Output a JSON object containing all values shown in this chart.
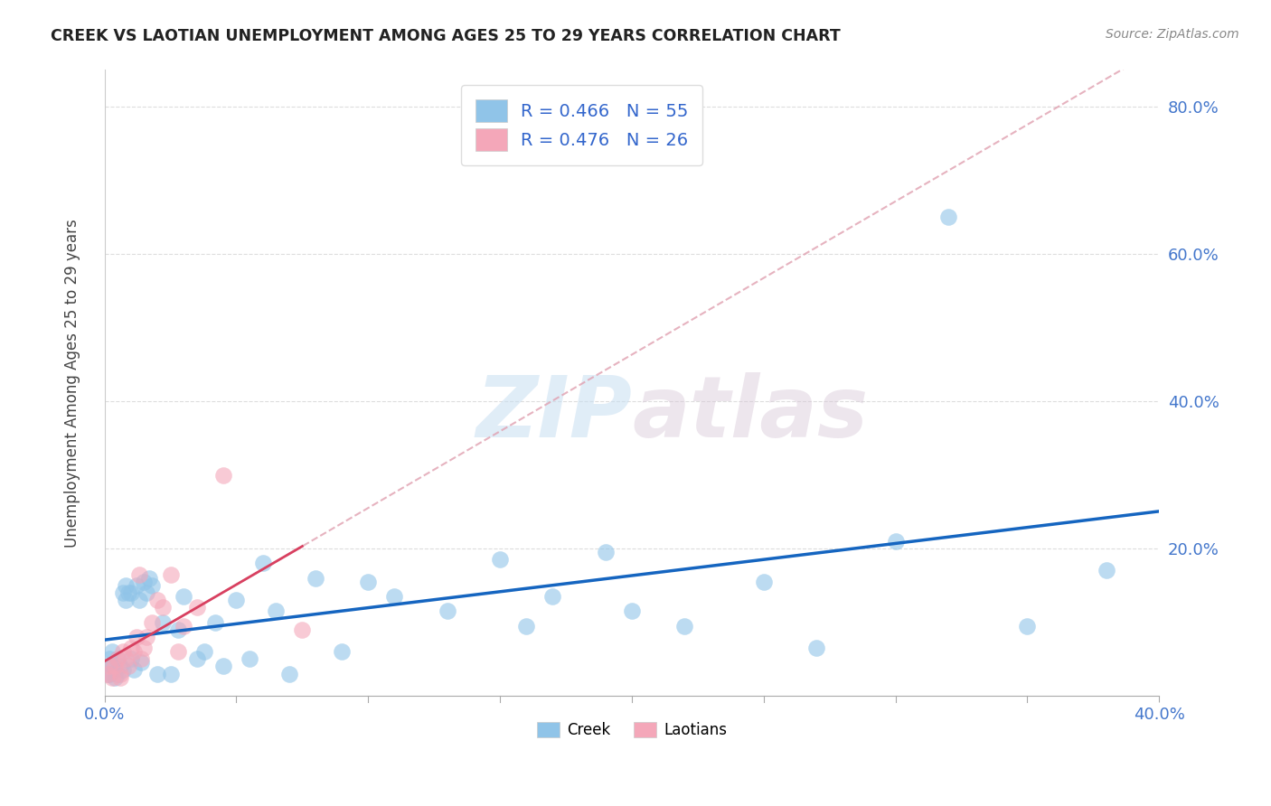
{
  "title": "CREEK VS LAOTIAN UNEMPLOYMENT AMONG AGES 25 TO 29 YEARS CORRELATION CHART",
  "source": "Source: ZipAtlas.com",
  "ylabel": "Unemployment Among Ages 25 to 29 years",
  "xlim": [
    0.0,
    0.4
  ],
  "ylim": [
    0.0,
    0.85
  ],
  "xticks": [
    0.0,
    0.4
  ],
  "xtick_labels": [
    "0.0%",
    "40.0%"
  ],
  "yticks": [
    0.2,
    0.4,
    0.6,
    0.8
  ],
  "ytick_labels": [
    "20.0%",
    "40.0%",
    "60.0%",
    "80.0%"
  ],
  "creek_color": "#90c4e8",
  "laotian_color": "#f4a7b9",
  "creek_line_color": "#1565c0",
  "laotian_line_color": "#d84060",
  "laotian_dash_color": "#e0a0b0",
  "creek_R": 0.466,
  "creek_N": 55,
  "laotian_R": 0.476,
  "laotian_N": 26,
  "creek_x": [
    0.001,
    0.002,
    0.002,
    0.003,
    0.003,
    0.004,
    0.005,
    0.005,
    0.006,
    0.007,
    0.007,
    0.008,
    0.008,
    0.009,
    0.01,
    0.01,
    0.011,
    0.012,
    0.013,
    0.014,
    0.015,
    0.016,
    0.017,
    0.018,
    0.02,
    0.022,
    0.025,
    0.028,
    0.03,
    0.035,
    0.038,
    0.042,
    0.045,
    0.05,
    0.055,
    0.06,
    0.065,
    0.07,
    0.08,
    0.09,
    0.1,
    0.11,
    0.13,
    0.15,
    0.16,
    0.17,
    0.19,
    0.2,
    0.22,
    0.25,
    0.27,
    0.3,
    0.32,
    0.35,
    0.38
  ],
  "creek_y": [
    0.03,
    0.05,
    0.03,
    0.04,
    0.06,
    0.025,
    0.03,
    0.05,
    0.04,
    0.035,
    0.14,
    0.13,
    0.15,
    0.14,
    0.14,
    0.05,
    0.035,
    0.15,
    0.13,
    0.045,
    0.155,
    0.14,
    0.16,
    0.15,
    0.03,
    0.1,
    0.03,
    0.09,
    0.135,
    0.05,
    0.06,
    0.1,
    0.04,
    0.13,
    0.05,
    0.18,
    0.115,
    0.03,
    0.16,
    0.06,
    0.155,
    0.135,
    0.115,
    0.185,
    0.095,
    0.135,
    0.195,
    0.115,
    0.095,
    0.155,
    0.065,
    0.21,
    0.65,
    0.095,
    0.17
  ],
  "laotian_x": [
    0.001,
    0.002,
    0.003,
    0.004,
    0.005,
    0.006,
    0.006,
    0.007,
    0.008,
    0.009,
    0.01,
    0.011,
    0.012,
    0.013,
    0.014,
    0.015,
    0.016,
    0.018,
    0.02,
    0.022,
    0.025,
    0.028,
    0.03,
    0.035,
    0.045,
    0.075
  ],
  "laotian_y": [
    0.03,
    0.04,
    0.025,
    0.04,
    0.05,
    0.03,
    0.025,
    0.06,
    0.05,
    0.04,
    0.065,
    0.06,
    0.08,
    0.165,
    0.05,
    0.065,
    0.08,
    0.1,
    0.13,
    0.12,
    0.165,
    0.06,
    0.095,
    0.12,
    0.3,
    0.09
  ],
  "watermark_zip": "ZIP",
  "watermark_atlas": "atlas",
  "background_color": "#ffffff",
  "grid_color": "#cccccc",
  "grid_dash_color": "#dddddd"
}
